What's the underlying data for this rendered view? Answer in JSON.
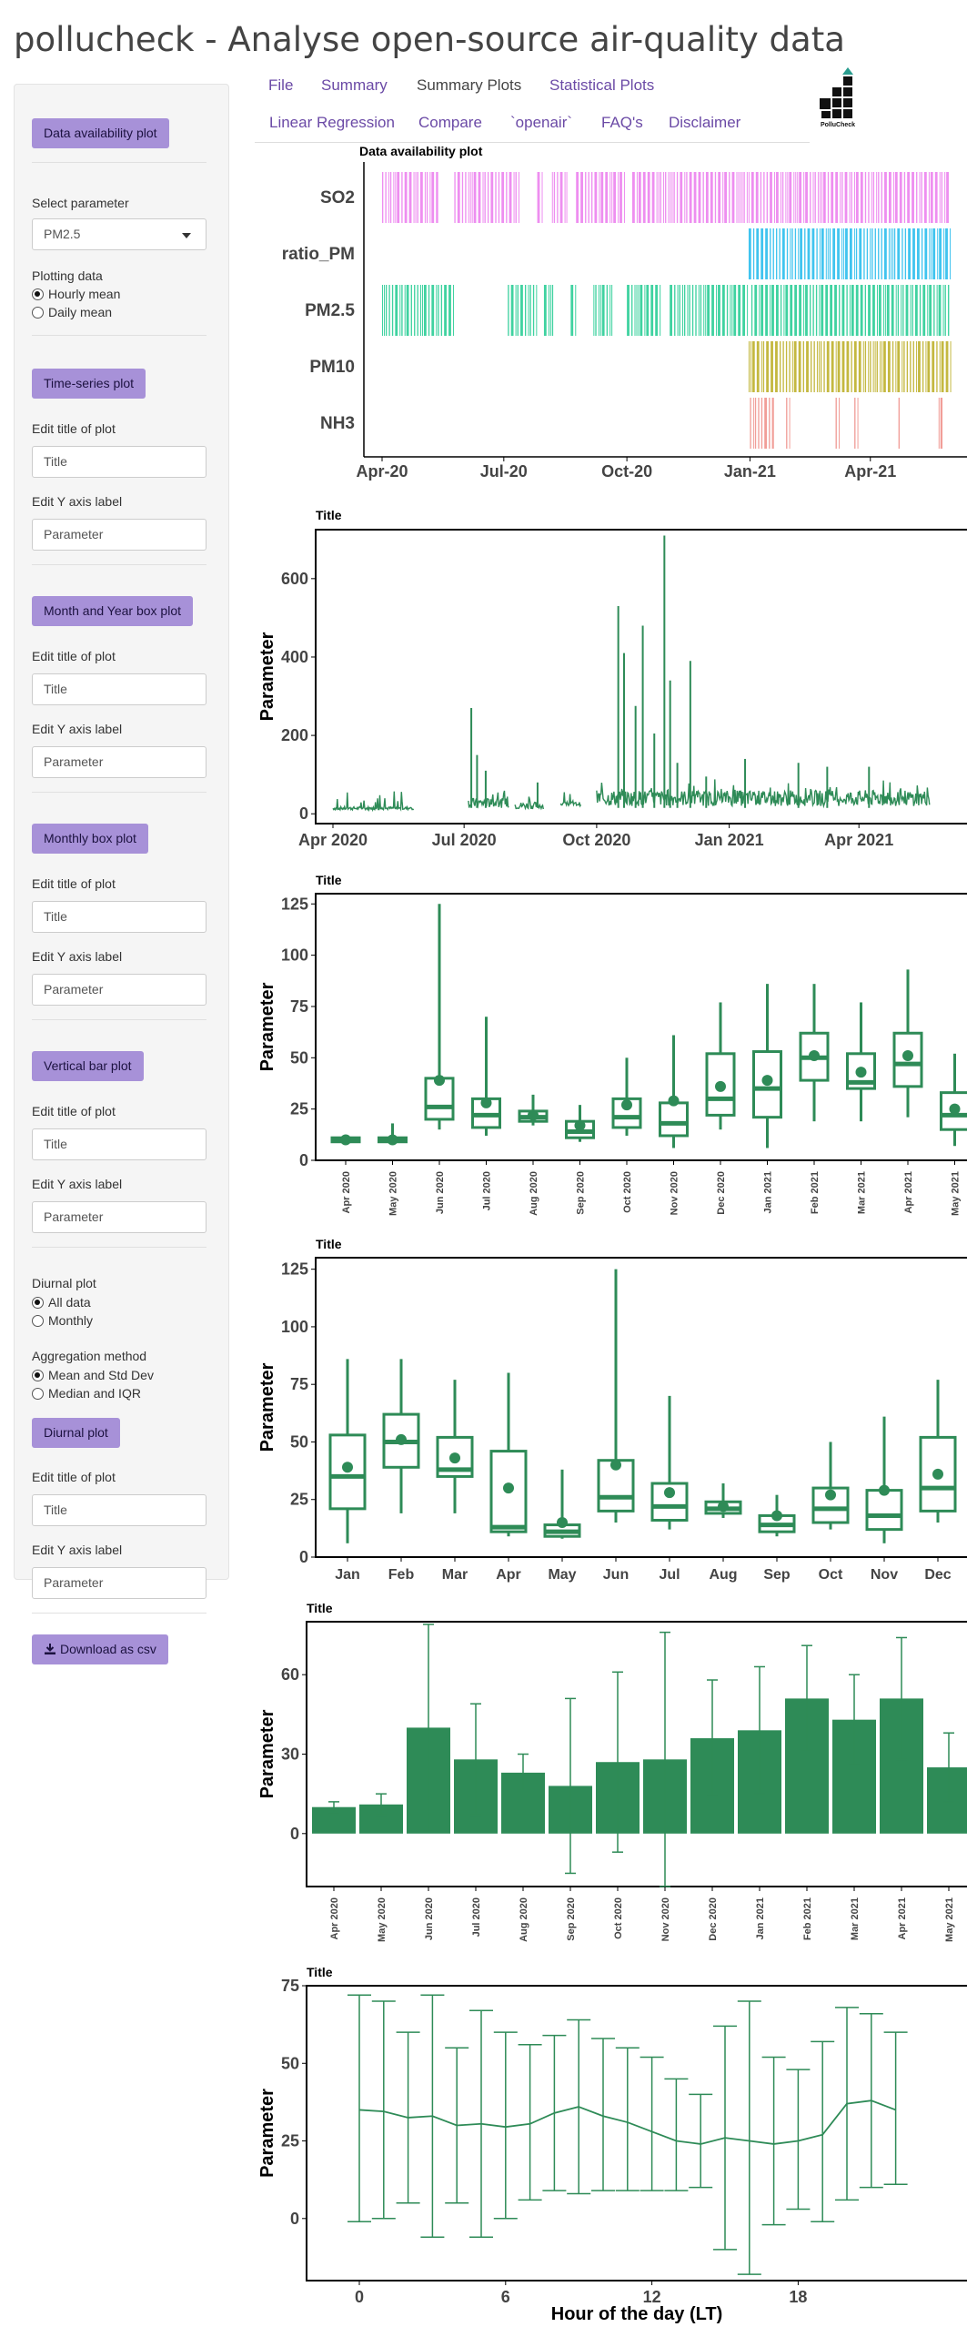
{
  "app": {
    "title": "pollucheck - Analyse open-source air-quality data"
  },
  "nav": {
    "tabs": [
      {
        "label": "File"
      },
      {
        "label": "Summary"
      },
      {
        "label": "Summary Plots"
      },
      {
        "label": "Statistical Plots"
      },
      {
        "label": "Linear Regression"
      },
      {
        "label": "Compare"
      },
      {
        "label": "`openair`"
      },
      {
        "label": "FAQ's"
      },
      {
        "label": "Disclaimer"
      }
    ],
    "active": "Summary Plots"
  },
  "logo": {
    "text": "PolluCheck",
    "colors": {
      "dark": "#111111",
      "accent": "#2a9d8f"
    }
  },
  "sidebar": {
    "availability_button": "Data availability plot",
    "select_parameter_label": "Select parameter",
    "select_parameter_value": "PM2.5",
    "plotting_data_label": "Plotting data",
    "plotting_options": [
      {
        "label": "Hourly mean",
        "checked": true
      },
      {
        "label": "Daily mean",
        "checked": false
      }
    ],
    "timeseries_button": "Time-series plot",
    "month_year_box_button": "Month and Year box plot",
    "monthly_box_button": "Monthly box plot",
    "vertical_bar_button": "Vertical bar plot",
    "edit_title_label": "Edit title of plot",
    "edit_title_value": "Title",
    "edit_y_label": "Edit Y axis label",
    "edit_y_value": "Parameter",
    "diurnal_label": "Diurnal plot",
    "diurnal_options": [
      {
        "label": "All data",
        "checked": true
      },
      {
        "label": "Monthly",
        "checked": false
      }
    ],
    "aggregation_label": "Aggregation method",
    "aggregation_options": [
      {
        "label": "Mean and Std Dev",
        "checked": true
      },
      {
        "label": "Median and IQR",
        "checked": false
      }
    ],
    "diurnal_button": "Diurnal plot",
    "download_button": "Download as csv"
  },
  "colors": {
    "accent": "#2e8b57",
    "button": "#a791d8",
    "link": "#6b4aa6"
  },
  "chart_data": [
    {
      "type": "availability",
      "title": "Data availability plot",
      "x_ticks": [
        "Apr-20",
        "Jul-20",
        "Oct-20",
        "Jan-21",
        "Apr-21"
      ],
      "xlim": [
        "2020-04-01",
        "2021-05-31"
      ],
      "rows": [
        {
          "name": "SO2",
          "color": "#ee8ef0",
          "spans": [
            [
              "2020-04-01",
              "2020-05-14"
            ],
            [
              "2020-05-25",
              "2020-07-12"
            ],
            [
              "2020-07-26",
              "2020-07-31"
            ],
            [
              "2020-08-06",
              "2020-08-18"
            ],
            [
              "2020-08-24",
              "2020-09-30"
            ],
            [
              "2020-10-05",
              "2020-12-31"
            ],
            [
              "2021-01-02",
              "2021-05-31"
            ]
          ]
        },
        {
          "name": "ratio_PM",
          "color": "#40c4ef",
          "spans": [
            [
              "2020-12-31",
              "2021-05-31"
            ]
          ]
        },
        {
          "name": "PM2.5",
          "color": "#3fd2a0",
          "spans": [
            [
              "2020-04-01",
              "2020-05-25"
            ],
            [
              "2020-07-04",
              "2020-07-26"
            ],
            [
              "2020-07-31",
              "2020-08-08"
            ],
            [
              "2020-08-20",
              "2020-08-25"
            ],
            [
              "2020-09-06",
              "2020-09-20"
            ],
            [
              "2020-10-01",
              "2020-10-27"
            ],
            [
              "2020-11-02",
              "2020-12-31"
            ],
            [
              "2021-01-02",
              "2021-05-31"
            ]
          ]
        },
        {
          "name": "PM10",
          "color": "#c4b840",
          "spans": [
            [
              "2020-12-31",
              "2021-05-31"
            ]
          ]
        },
        {
          "name": "NH3",
          "color": "#f19e98",
          "spans": [
            [
              "2021-01-01",
              "2021-01-20"
            ],
            [
              "2021-01-28",
              "2021-02-01"
            ],
            [
              "2021-03-06",
              "2021-03-09"
            ],
            [
              "2021-03-20",
              "2021-03-24"
            ],
            [
              "2021-04-22",
              "2021-04-24"
            ],
            [
              "2021-05-22",
              "2021-05-26"
            ]
          ]
        }
      ]
    },
    {
      "type": "line",
      "title": "Title",
      "ylabel": "Parameter",
      "x_ticks": [
        "Apr 2020",
        "Jul 2020",
        "Oct 2020",
        "Jan 2021",
        "Apr 2021"
      ],
      "ylim": [
        -25,
        725
      ],
      "y_ticks": [
        0,
        200,
        400,
        600
      ],
      "xlim": [
        "2020-03-20",
        "2021-06-15"
      ],
      "baseline_segments": [
        [
          "2020-04-01",
          "2020-05-27",
          10,
          18
        ],
        [
          "2020-07-04",
          "2020-08-01",
          15,
          40
        ],
        [
          "2020-08-05",
          "2020-08-25",
          12,
          30
        ],
        [
          "2020-09-06",
          "2020-09-20",
          20,
          30
        ],
        [
          "2020-10-01",
          "2021-05-20",
          20,
          60
        ]
      ],
      "spikes": [
        [
          "2020-07-06",
          270
        ],
        [
          "2020-07-10",
          150
        ],
        [
          "2020-07-16",
          110
        ],
        [
          "2020-08-21",
          80
        ],
        [
          "2020-10-16",
          530
        ],
        [
          "2020-10-20",
          410
        ],
        [
          "2020-10-28",
          275
        ],
        [
          "2020-11-02",
          480
        ],
        [
          "2020-11-10",
          205
        ],
        [
          "2020-11-17",
          710
        ],
        [
          "2020-11-21",
          340
        ],
        [
          "2020-12-05",
          390
        ],
        [
          "2020-11-26",
          130
        ],
        [
          "2020-12-16",
          95
        ],
        [
          "2021-01-12",
          140
        ],
        [
          "2021-02-18",
          130
        ],
        [
          "2021-03-10",
          120
        ],
        [
          "2021-04-08",
          120
        ]
      ]
    },
    {
      "type": "box",
      "title": "Title",
      "ylabel": "Parameter",
      "ylim": [
        0,
        130
      ],
      "y_ticks": [
        0,
        25,
        50,
        75,
        100,
        125
      ],
      "categories": [
        "Apr 2020",
        "May 2020",
        "Jun 2020",
        "Jul 2020",
        "Aug 2020",
        "Sep 2020",
        "Oct 2020",
        "Nov 2020",
        "Dec 2020",
        "Jan 2021",
        "Feb 2021",
        "Mar 2021",
        "Apr 2021",
        "May 2021"
      ],
      "boxes": [
        [
          8,
          9,
          10,
          11,
          12,
          10
        ],
        [
          8,
          9,
          10,
          11,
          18,
          10
        ],
        [
          15,
          20,
          26,
          40,
          125,
          39
        ],
        [
          12,
          16,
          22,
          30,
          70,
          28
        ],
        [
          17,
          19,
          21,
          24,
          32,
          22
        ],
        [
          9,
          11,
          14,
          19,
          27,
          17
        ],
        [
          12,
          16,
          21,
          30,
          50,
          27
        ],
        [
          6,
          12,
          18,
          28,
          61,
          29
        ],
        [
          15,
          22,
          30,
          52,
          77,
          36
        ],
        [
          6,
          21,
          35,
          53,
          86,
          39
        ],
        [
          19,
          39,
          50,
          62,
          86,
          51
        ],
        [
          19,
          35,
          38,
          52,
          77,
          43
        ],
        [
          21,
          36,
          47,
          62,
          93,
          51
        ],
        [
          7,
          15,
          22,
          33,
          52,
          25
        ]
      ]
    },
    {
      "type": "box",
      "title": "Title",
      "ylabel": "Parameter",
      "ylim": [
        0,
        130
      ],
      "y_ticks": [
        0,
        25,
        50,
        75,
        100,
        125
      ],
      "categories": [
        "Jan",
        "Feb",
        "Mar",
        "Apr",
        "May",
        "Jun",
        "Jul",
        "Aug",
        "Sep",
        "Oct",
        "Nov",
        "Dec"
      ],
      "boxes": [
        [
          6,
          21,
          35,
          53,
          86,
          39
        ],
        [
          19,
          39,
          50,
          62,
          86,
          51
        ],
        [
          19,
          35,
          38,
          52,
          77,
          43
        ],
        [
          9,
          11,
          13,
          46,
          80,
          30
        ],
        [
          8,
          9,
          11,
          14,
          38,
          15
        ],
        [
          15,
          20,
          26,
          42,
          125,
          40
        ],
        [
          12,
          16,
          22,
          32,
          70,
          28
        ],
        [
          17,
          19,
          21,
          24,
          32,
          22
        ],
        [
          9,
          11,
          14,
          18,
          27,
          18
        ],
        [
          12,
          15,
          21,
          30,
          50,
          27
        ],
        [
          6,
          12,
          18,
          29,
          61,
          29
        ],
        [
          15,
          20,
          30,
          52,
          77,
          36
        ]
      ]
    },
    {
      "type": "bar",
      "title": "Title",
      "ylabel": "Parameter",
      "ylim": [
        -20,
        80
      ],
      "y_ticks": [
        0,
        30,
        60
      ],
      "categories": [
        "Apr 2020",
        "May 2020",
        "Jun 2020",
        "Jul 2020",
        "Aug 2020",
        "Sep 2020",
        "Oct 2020",
        "Nov 2020",
        "Dec 2020",
        "Jan 2021",
        "Feb 2021",
        "Mar 2021",
        "Apr 2021",
        "May 2021"
      ],
      "values": [
        10,
        11,
        40,
        28,
        23,
        18,
        27,
        28,
        36,
        39,
        51,
        43,
        51,
        25
      ],
      "errors": [
        2,
        4,
        39,
        21,
        7,
        33,
        34,
        48,
        22,
        24,
        20,
        17,
        23,
        13
      ]
    },
    {
      "type": "line",
      "title": "Title",
      "xlabel": "Hour of the day (LT)",
      "ylabel": "Parameter",
      "ylim": [
        -20,
        75
      ],
      "y_ticks": [
        0,
        25,
        50,
        75
      ],
      "x_ticks": [
        0,
        6,
        12,
        18
      ],
      "x": [
        0,
        1,
        2,
        3,
        4,
        5,
        6,
        7,
        8,
        9,
        10,
        11,
        12,
        13,
        14,
        15,
        16,
        17,
        18,
        19,
        20,
        21,
        22
      ],
      "values": [
        35,
        34.5,
        32.5,
        33,
        30,
        30.5,
        29.5,
        30.5,
        34,
        36,
        33,
        31,
        28,
        25,
        24,
        26,
        25,
        24,
        25,
        27,
        37,
        38,
        35
      ],
      "lower": [
        -1,
        0,
        5,
        -6,
        5,
        -6,
        0,
        6,
        9,
        8,
        9,
        9,
        9,
        9,
        10,
        -10,
        -18,
        -2,
        3,
        -1,
        6,
        10,
        11
      ],
      "upper": [
        72,
        70,
        60,
        72,
        55,
        67,
        60,
        56,
        59,
        64,
        58,
        55,
        52,
        45,
        40,
        62,
        70,
        52,
        48,
        57,
        68,
        66,
        60
      ]
    }
  ]
}
